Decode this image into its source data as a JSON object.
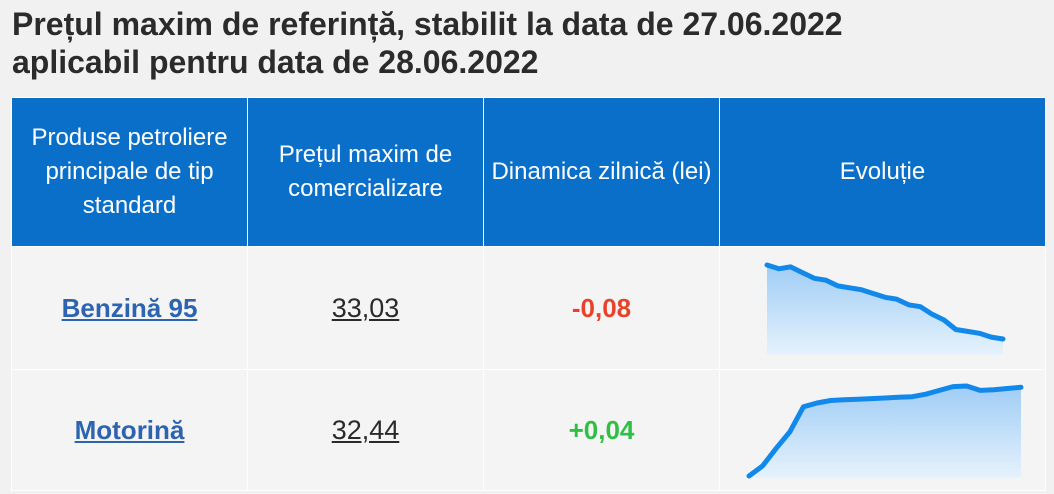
{
  "title": {
    "line1": "Prețul maxim de referință, stabilit la data de 27.06.2022",
    "line2": "aplicabil pentru data de 28.06.2022"
  },
  "table": {
    "headers": [
      "Produse petroliere principale de tip standard",
      "Prețul maxim de comercializare",
      "Dinamica zilnică (lei)",
      "Evoluție"
    ],
    "rows": [
      {
        "product": "Benzină 95",
        "price": "33,03",
        "change": "-0,08",
        "change_color": "#e8432a",
        "trend": [
          100,
          98,
          99,
          96,
          93,
          92,
          89,
          88,
          87,
          85,
          83,
          82,
          79,
          78,
          74,
          71,
          66,
          65,
          64,
          62,
          61
        ]
      },
      {
        "product": "Motorină",
        "price": "32,44",
        "change": "+0,04",
        "change_color": "#2fbf44",
        "trend": [
          20,
          28,
          42,
          55,
          75,
          78,
          80,
          80.5,
          81,
          81.5,
          82,
          82.5,
          83,
          85,
          88,
          91,
          91.5,
          88,
          88.5,
          89.5,
          90.5
        ]
      }
    ]
  },
  "colors": {
    "header_bg": "#0a6fc9",
    "spark_line": "#1289ea",
    "spark_fill_top": "#9fcdf5",
    "spark_fill_bottom": "#e6f2fc"
  }
}
